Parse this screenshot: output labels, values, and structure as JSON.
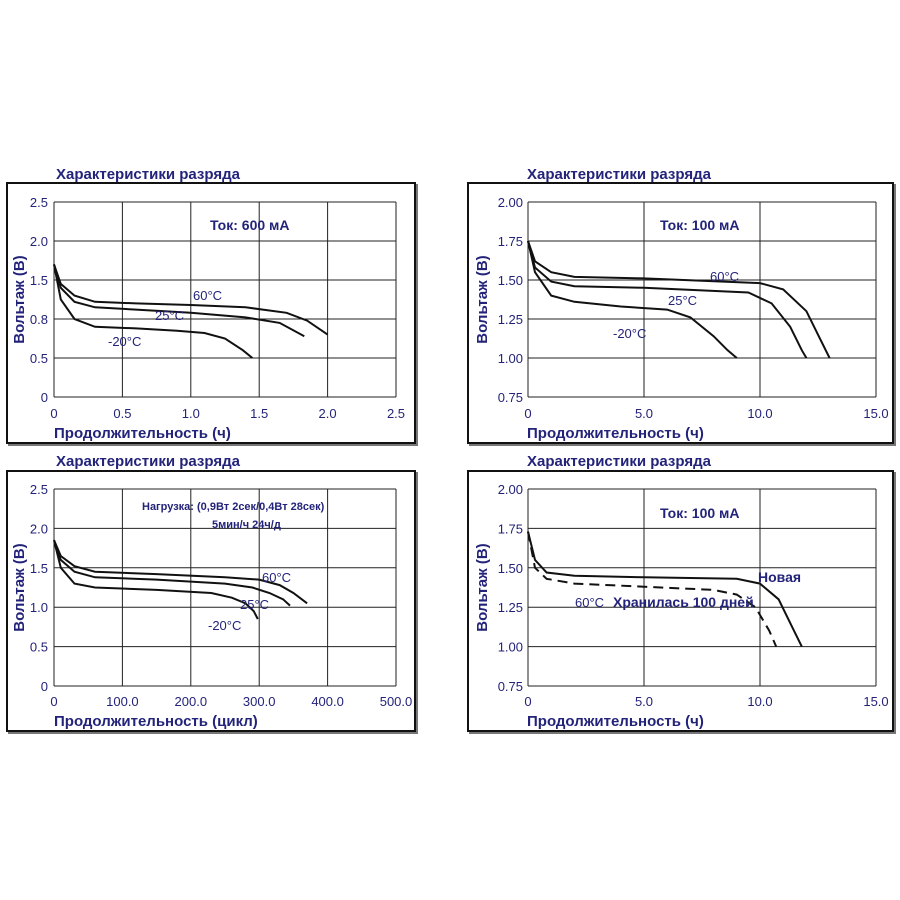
{
  "chart_data": [
    {
      "type": "line",
      "title": "Характеристики разряда",
      "xlabel": "Продолжительность (ч)",
      "ylabel": "Вольтаж (В)",
      "xlim": [
        0,
        2.5
      ],
      "ylim": [
        0,
        2.5
      ],
      "xticks": [
        "0",
        "0.5",
        "1.0",
        "1.5",
        "2.0",
        "2.5"
      ],
      "yticks": [
        "0",
        "0.5",
        "0.8",
        "1.5",
        "2.0",
        "2.5"
      ],
      "annotation": "Ток: 600 мА",
      "series": [
        {
          "name": "60°C",
          "x": [
            0,
            0.05,
            0.15,
            0.3,
            0.6,
            1.0,
            1.4,
            1.7,
            1.85,
            2.0
          ],
          "y": [
            1.7,
            1.45,
            1.3,
            1.22,
            1.2,
            1.18,
            1.15,
            1.08,
            0.98,
            0.8
          ]
        },
        {
          "name": "25°C",
          "x": [
            0,
            0.05,
            0.15,
            0.3,
            0.6,
            1.0,
            1.4,
            1.65,
            1.83
          ],
          "y": [
            1.7,
            1.4,
            1.22,
            1.15,
            1.12,
            1.08,
            1.02,
            0.95,
            0.78
          ]
        },
        {
          "name": "-20°C",
          "x": [
            0,
            0.05,
            0.15,
            0.3,
            0.6,
            0.9,
            1.1,
            1.25,
            1.38,
            1.45
          ],
          "y": [
            1.7,
            1.25,
            1.0,
            0.9,
            0.88,
            0.85,
            0.82,
            0.75,
            0.6,
            0.5
          ]
        }
      ],
      "labels": [
        "60°C",
        "25°C",
        "-20°C"
      ]
    },
    {
      "type": "line",
      "title": "Характеристики разряда",
      "xlabel": "Продолжительность (ч)",
      "ylabel": "Вольтаж (В)",
      "xlim": [
        0,
        15
      ],
      "ylim": [
        0.75,
        2.0
      ],
      "xticks": [
        "0",
        "5.0",
        "10.0",
        "15.0"
      ],
      "yticks": [
        "0.75",
        "1.00",
        "1.25",
        "1.50",
        "1.75",
        "2.00"
      ],
      "annotation": "Ток: 100 мА",
      "series": [
        {
          "name": "60°C",
          "x": [
            0,
            0.3,
            1,
            2,
            5,
            10,
            11,
            12,
            12.6,
            13
          ],
          "y": [
            1.75,
            1.62,
            1.55,
            1.52,
            1.51,
            1.48,
            1.44,
            1.3,
            1.12,
            1.0
          ]
        },
        {
          "name": "25°C",
          "x": [
            0,
            0.3,
            1,
            2,
            5,
            9.5,
            10.5,
            11.3,
            11.8,
            12
          ],
          "y": [
            1.75,
            1.58,
            1.49,
            1.46,
            1.45,
            1.42,
            1.35,
            1.2,
            1.05,
            1.0
          ]
        },
        {
          "name": "-20°C",
          "x": [
            0,
            0.3,
            1,
            2,
            4,
            6,
            7,
            8,
            8.6,
            9
          ],
          "y": [
            1.75,
            1.55,
            1.4,
            1.36,
            1.33,
            1.31,
            1.26,
            1.14,
            1.05,
            1.0
          ]
        }
      ],
      "labels": [
        "60°C",
        "25°C",
        "-20°C"
      ]
    },
    {
      "type": "line",
      "title": "Характеристики разряда",
      "xlabel": "Продолжительность (цикл)",
      "ylabel": "Вольтаж (В)",
      "xlim": [
        0,
        500
      ],
      "ylim": [
        0,
        2.5
      ],
      "xticks": [
        "0",
        "100.0",
        "200.0",
        "300.0",
        "400.0",
        "500.0"
      ],
      "yticks": [
        "0",
        "0.5",
        "1.0",
        "1.5",
        "2.0",
        "2.5"
      ],
      "annotation": "Нагрузка: (0,9Вт 2сек/0,4Вт 28сек)",
      "annotation2": "5мин/ч 24ч/д",
      "series": [
        {
          "name": "60°C",
          "x": [
            0,
            10,
            30,
            60,
            150,
            250,
            300,
            330,
            350,
            370
          ],
          "y": [
            1.85,
            1.65,
            1.52,
            1.45,
            1.42,
            1.38,
            1.35,
            1.28,
            1.18,
            1.05
          ]
        },
        {
          "name": "25°C",
          "x": [
            0,
            10,
            30,
            60,
            150,
            250,
            290,
            315,
            335,
            345
          ],
          "y": [
            1.85,
            1.6,
            1.45,
            1.38,
            1.35,
            1.3,
            1.25,
            1.18,
            1.1,
            1.02
          ]
        },
        {
          "name": "-20°C",
          "x": [
            0,
            10,
            30,
            60,
            150,
            230,
            260,
            280,
            292,
            298
          ],
          "y": [
            1.85,
            1.5,
            1.3,
            1.25,
            1.22,
            1.18,
            1.12,
            1.05,
            0.95,
            0.85
          ]
        }
      ],
      "labels": [
        "60°C",
        "25°C",
        "-20°C"
      ]
    },
    {
      "type": "line",
      "title": "Характеристики разряда",
      "xlabel": "Продолжительность (ч)",
      "ylabel": "Вольтаж (В)",
      "xlim": [
        0,
        15
      ],
      "ylim": [
        0.75,
        2.0
      ],
      "xticks": [
        "0",
        "5.0",
        "10.0",
        "15.0"
      ],
      "yticks": [
        "0.75",
        "1.00",
        "1.25",
        "1.50",
        "1.75",
        "2.00"
      ],
      "annotation": "Ток: 100 мА",
      "series": [
        {
          "name": "Новая",
          "dashed": false,
          "x": [
            0,
            0.3,
            0.8,
            2,
            5,
            9,
            10,
            10.8,
            11.4,
            11.8
          ],
          "y": [
            1.73,
            1.55,
            1.47,
            1.45,
            1.44,
            1.43,
            1.4,
            1.3,
            1.12,
            1.0
          ]
        },
        {
          "name": "Хранилась 100 дней",
          "dashed": true,
          "x": [
            0,
            0.3,
            0.8,
            2,
            5,
            8,
            9,
            9.8,
            10.4,
            10.7
          ],
          "y": [
            1.73,
            1.5,
            1.43,
            1.4,
            1.38,
            1.36,
            1.33,
            1.25,
            1.1,
            1.0
          ]
        }
      ],
      "temperature": "60°C",
      "labels": [
        "Новая",
        "Хранилась 100 дней"
      ]
    }
  ]
}
